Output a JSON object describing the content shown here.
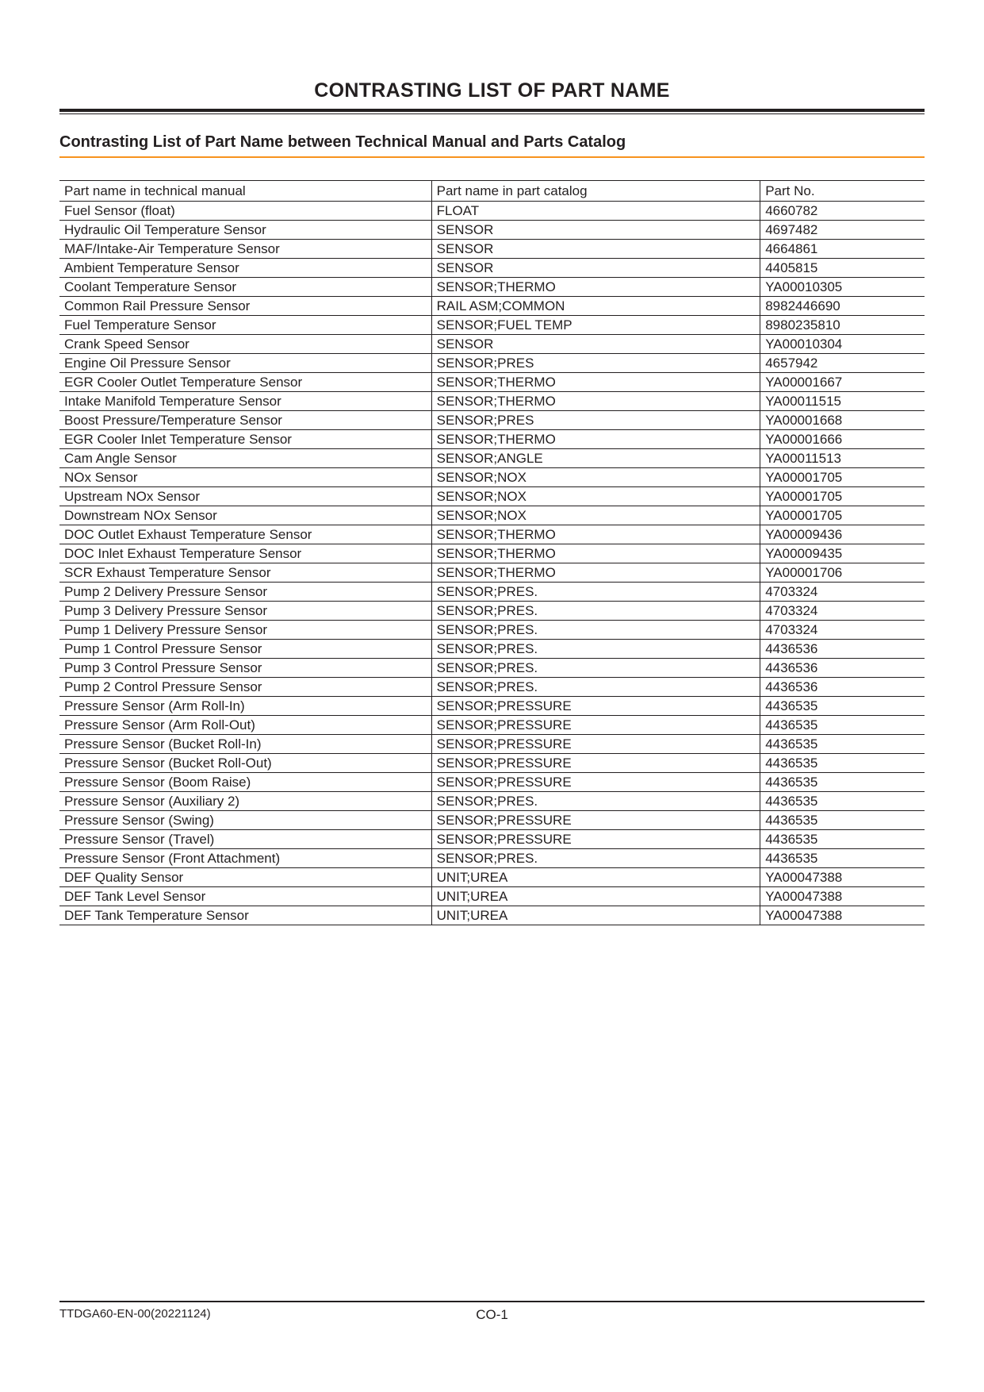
{
  "colors": {
    "text": "#231f20",
    "accent_orange": "#f7931e",
    "background": "#ffffff"
  },
  "page_title": "CONTRASTING LIST OF PART NAME",
  "subtitle": "Contrasting List of Part Name between Technical Manual and Parts Catalog",
  "table": {
    "columns": [
      "Part name in technical manual",
      "Part name in part catalog",
      "Part No."
    ],
    "rows": [
      [
        "Fuel Sensor (float)",
        "FLOAT",
        "4660782"
      ],
      [
        "Hydraulic Oil Temperature Sensor",
        "SENSOR",
        "4697482"
      ],
      [
        "MAF/Intake-Air Temperature Sensor",
        "SENSOR",
        "4664861"
      ],
      [
        "Ambient Temperature Sensor",
        "SENSOR",
        "4405815"
      ],
      [
        "Coolant Temperature Sensor",
        "SENSOR;THERMO",
        "YA00010305"
      ],
      [
        "Common Rail Pressure Sensor",
        "RAIL ASM;COMMON",
        "8982446690"
      ],
      [
        "Fuel Temperature Sensor",
        "SENSOR;FUEL TEMP",
        "8980235810"
      ],
      [
        "Crank Speed Sensor",
        "SENSOR",
        "YA00010304"
      ],
      [
        "Engine Oil Pressure Sensor",
        "SENSOR;PRES",
        "4657942"
      ],
      [
        "EGR Cooler Outlet Temperature Sensor",
        "SENSOR;THERMO",
        "YA00001667"
      ],
      [
        "Intake Manifold Temperature Sensor",
        "SENSOR;THERMO",
        "YA00011515"
      ],
      [
        "Boost Pressure/Temperature Sensor",
        "SENSOR;PRES",
        "YA00001668"
      ],
      [
        "EGR Cooler Inlet Temperature Sensor",
        "SENSOR;THERMO",
        "YA00001666"
      ],
      [
        "Cam Angle Sensor",
        "SENSOR;ANGLE",
        "YA00011513"
      ],
      [
        "NOx Sensor",
        "SENSOR;NOX",
        "YA00001705"
      ],
      [
        "Upstream NOx Sensor",
        "SENSOR;NOX",
        "YA00001705"
      ],
      [
        "Downstream NOx Sensor",
        "SENSOR;NOX",
        "YA00001705"
      ],
      [
        "DOC Outlet Exhaust Temperature Sensor",
        "SENSOR;THERMO",
        "YA00009436"
      ],
      [
        "DOC Inlet Exhaust Temperature Sensor",
        "SENSOR;THERMO",
        "YA00009435"
      ],
      [
        "SCR Exhaust Temperature Sensor",
        "SENSOR;THERMO",
        "YA00001706"
      ],
      [
        "Pump 2 Delivery Pressure Sensor",
        "SENSOR;PRES.",
        "4703324"
      ],
      [
        "Pump 3 Delivery Pressure Sensor",
        "SENSOR;PRES.",
        "4703324"
      ],
      [
        "Pump 1 Delivery Pressure Sensor",
        "SENSOR;PRES.",
        "4703324"
      ],
      [
        "Pump 1 Control Pressure Sensor",
        "SENSOR;PRES.",
        "4436536"
      ],
      [
        "Pump 3 Control Pressure Sensor",
        "SENSOR;PRES.",
        "4436536"
      ],
      [
        "Pump 2 Control Pressure Sensor",
        "SENSOR;PRES.",
        "4436536"
      ],
      [
        "Pressure Sensor (Arm Roll-In)",
        "SENSOR;PRESSURE",
        "4436535"
      ],
      [
        "Pressure Sensor (Arm Roll-Out)",
        "SENSOR;PRESSURE",
        "4436535"
      ],
      [
        "Pressure Sensor (Bucket Roll-In)",
        "SENSOR;PRESSURE",
        "4436535"
      ],
      [
        "Pressure Sensor (Bucket Roll-Out)",
        "SENSOR;PRESSURE",
        "4436535"
      ],
      [
        "Pressure Sensor (Boom Raise)",
        "SENSOR;PRESSURE",
        "4436535"
      ],
      [
        "Pressure Sensor (Auxiliary 2)",
        "SENSOR;PRES.",
        "4436535"
      ],
      [
        "Pressure Sensor (Swing)",
        "SENSOR;PRESSURE",
        "4436535"
      ],
      [
        "Pressure Sensor (Travel)",
        "SENSOR;PRESSURE",
        "4436535"
      ],
      [
        "Pressure Sensor (Front Attachment)",
        "SENSOR;PRES.",
        "4436535"
      ],
      [
        "DEF Quality Sensor",
        "UNIT;UREA",
        "YA00047388"
      ],
      [
        "DEF Tank Level Sensor",
        "UNIT;UREA",
        "YA00047388"
      ],
      [
        "DEF Tank Temperature Sensor",
        "UNIT;UREA",
        "YA00047388"
      ]
    ]
  },
  "footer": {
    "doc_id": "TTDGA60-EN-00(20221124)",
    "page_label": "CO-1"
  }
}
